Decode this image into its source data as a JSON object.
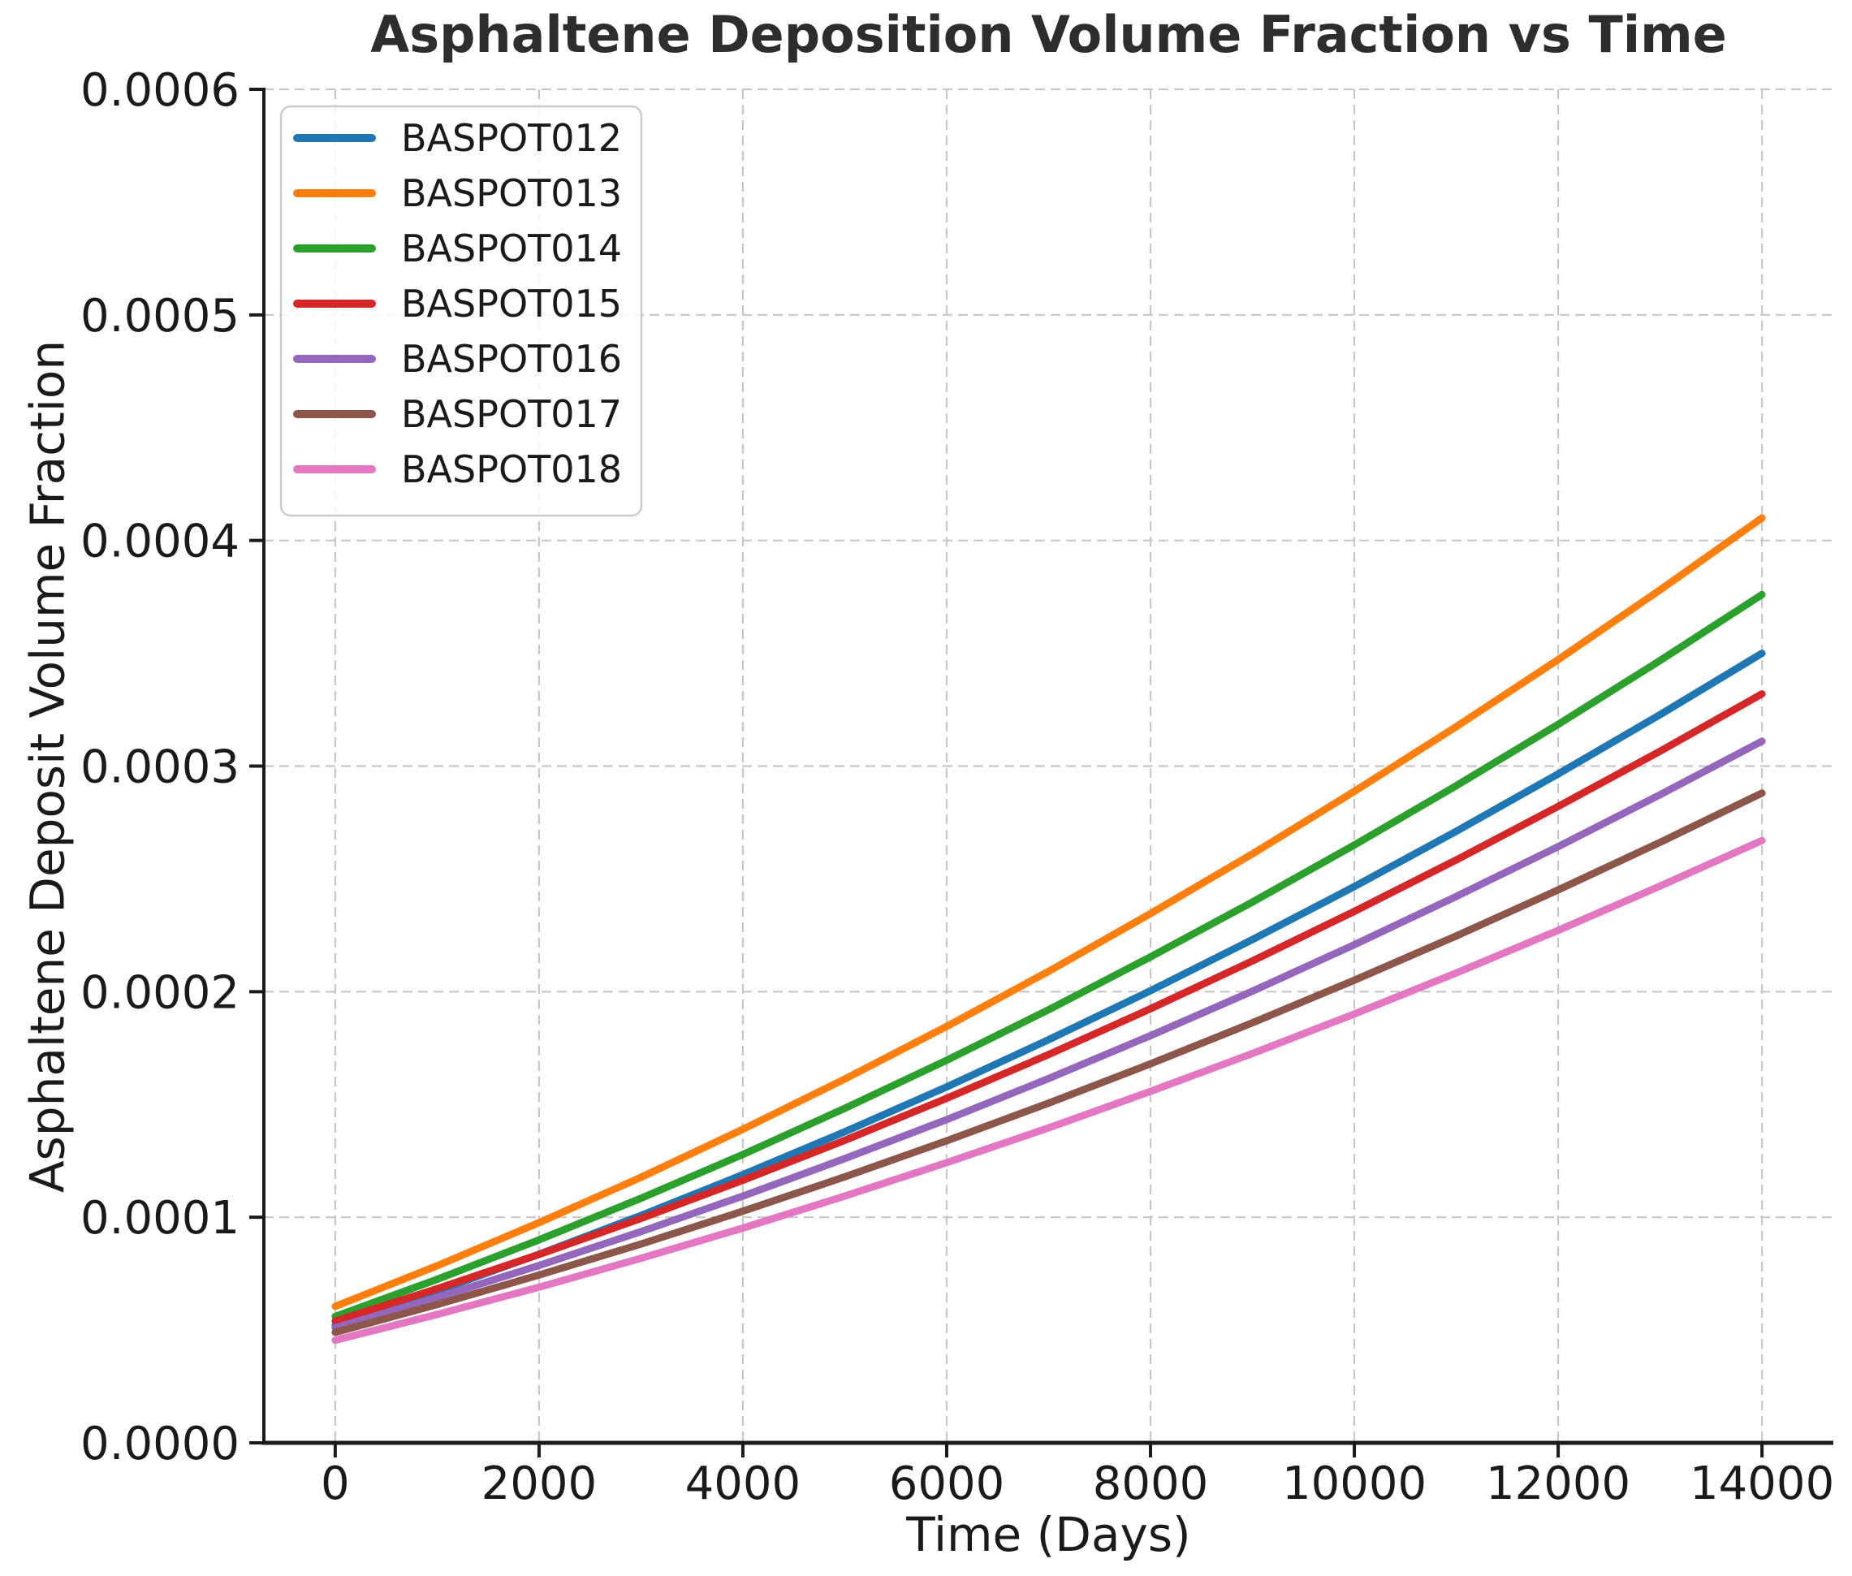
{
  "chart_data": {
    "type": "line",
    "title": "Asphaltene Deposition Volume Fraction vs Time",
    "xlabel": "Time (Days)",
    "ylabel": "Asphaltene Deposit Volume Fraction",
    "x": [
      0,
      1000,
      2000,
      3000,
      4000,
      5000,
      6000,
      7000,
      8000,
      9000,
      10000,
      11000,
      12000,
      13000,
      14000
    ],
    "series": [
      {
        "name": "BASPOT012",
        "color": "#1f77b4",
        "values": [
          5.2e-05,
          6.73e-05,
          8.36e-05,
          0.0001008,
          0.0001189,
          0.0001379,
          0.0001578,
          0.0001787,
          0.0002004,
          0.0002231,
          0.0002466,
          0.0002711,
          0.0002965,
          0.0003228,
          0.00035
        ]
      },
      {
        "name": "BASPOT013",
        "color": "#ff7f0e",
        "values": [
          6.05e-05,
          7.85e-05,
          9.76e-05,
          0.0001177,
          0.000139,
          0.0001613,
          0.0001846,
          0.000209,
          0.0002346,
          0.0002611,
          0.0002888,
          0.0003175,
          0.0003472,
          0.0003781,
          0.00041
        ]
      },
      {
        "name": "BASPOT014",
        "color": "#2ca02c",
        "values": [
          5.6e-05,
          7.25e-05,
          9e-05,
          0.0001084,
          0.0001278,
          0.0001483,
          0.0001696,
          0.000192,
          0.0002154,
          0.0002397,
          0.000265,
          0.0002913,
          0.0003185,
          0.0003468,
          0.000376
        ]
      },
      {
        "name": "BASPOT015",
        "color": "#d62728",
        "values": [
          5.4e-05,
          6.83e-05,
          8.35e-05,
          9.95e-05,
          0.0001164,
          0.0001341,
          0.0001527,
          0.0001721,
          0.0001924,
          0.0002136,
          0.0002356,
          0.0002584,
          0.0002821,
          0.0003066,
          0.000332
        ]
      },
      {
        "name": "BASPOT016",
        "color": "#9467bd",
        "values": [
          5.1e-05,
          6.44e-05,
          7.86e-05,
          9.36e-05,
          0.0001094,
          0.000126,
          0.0001433,
          0.0001615,
          0.0001805,
          0.0002002,
          0.0002208,
          0.0002422,
          0.0002643,
          0.0002873,
          0.000311
        ]
      },
      {
        "name": "BASPOT017",
        "color": "#8c564b",
        "values": [
          4.9e-05,
          6.13e-05,
          7.44e-05,
          8.81e-05,
          0.0001027,
          0.0001179,
          0.0001339,
          0.0001506,
          0.000168,
          0.0001862,
          0.0002051,
          0.0002247,
          0.0002451,
          0.0002662,
          0.000288
        ]
      },
      {
        "name": "BASPOT018",
        "color": "#e377c2",
        "values": [
          4.55e-05,
          5.69e-05,
          6.9e-05,
          8.18e-05,
          9.52e-05,
          0.0001094,
          0.0001242,
          0.0001396,
          0.0001558,
          0.0001726,
          0.0001901,
          0.0002083,
          0.0002272,
          0.0002468,
          0.000267
        ]
      }
    ],
    "xlim": [
      -700,
      14700
    ],
    "ylim": [
      0,
      0.0006
    ],
    "xticks": [
      0,
      2000,
      4000,
      6000,
      8000,
      10000,
      12000,
      14000
    ],
    "xtick_labels": [
      "0",
      "2000",
      "4000",
      "6000",
      "8000",
      "10000",
      "12000",
      "14000"
    ],
    "yticks": [
      0,
      0.0001,
      0.0002,
      0.0003,
      0.0004,
      0.0005,
      0.0006
    ],
    "ytick_labels": [
      "0.0000",
      "0.0001",
      "0.0002",
      "0.0003",
      "0.0004",
      "0.0005",
      "0.0006"
    ],
    "grid": true,
    "grid_line_style": "dashed",
    "grid_color": "#c8c8c8",
    "axis_color": "#1a1a1a",
    "text_color": "#1a1a1a",
    "legend": {
      "position": "upper left",
      "entries": [
        "BASPOT012",
        "BASPOT013",
        "BASPOT014",
        "BASPOT015",
        "BASPOT016",
        "BASPOT017",
        "BASPOT018"
      ]
    }
  }
}
